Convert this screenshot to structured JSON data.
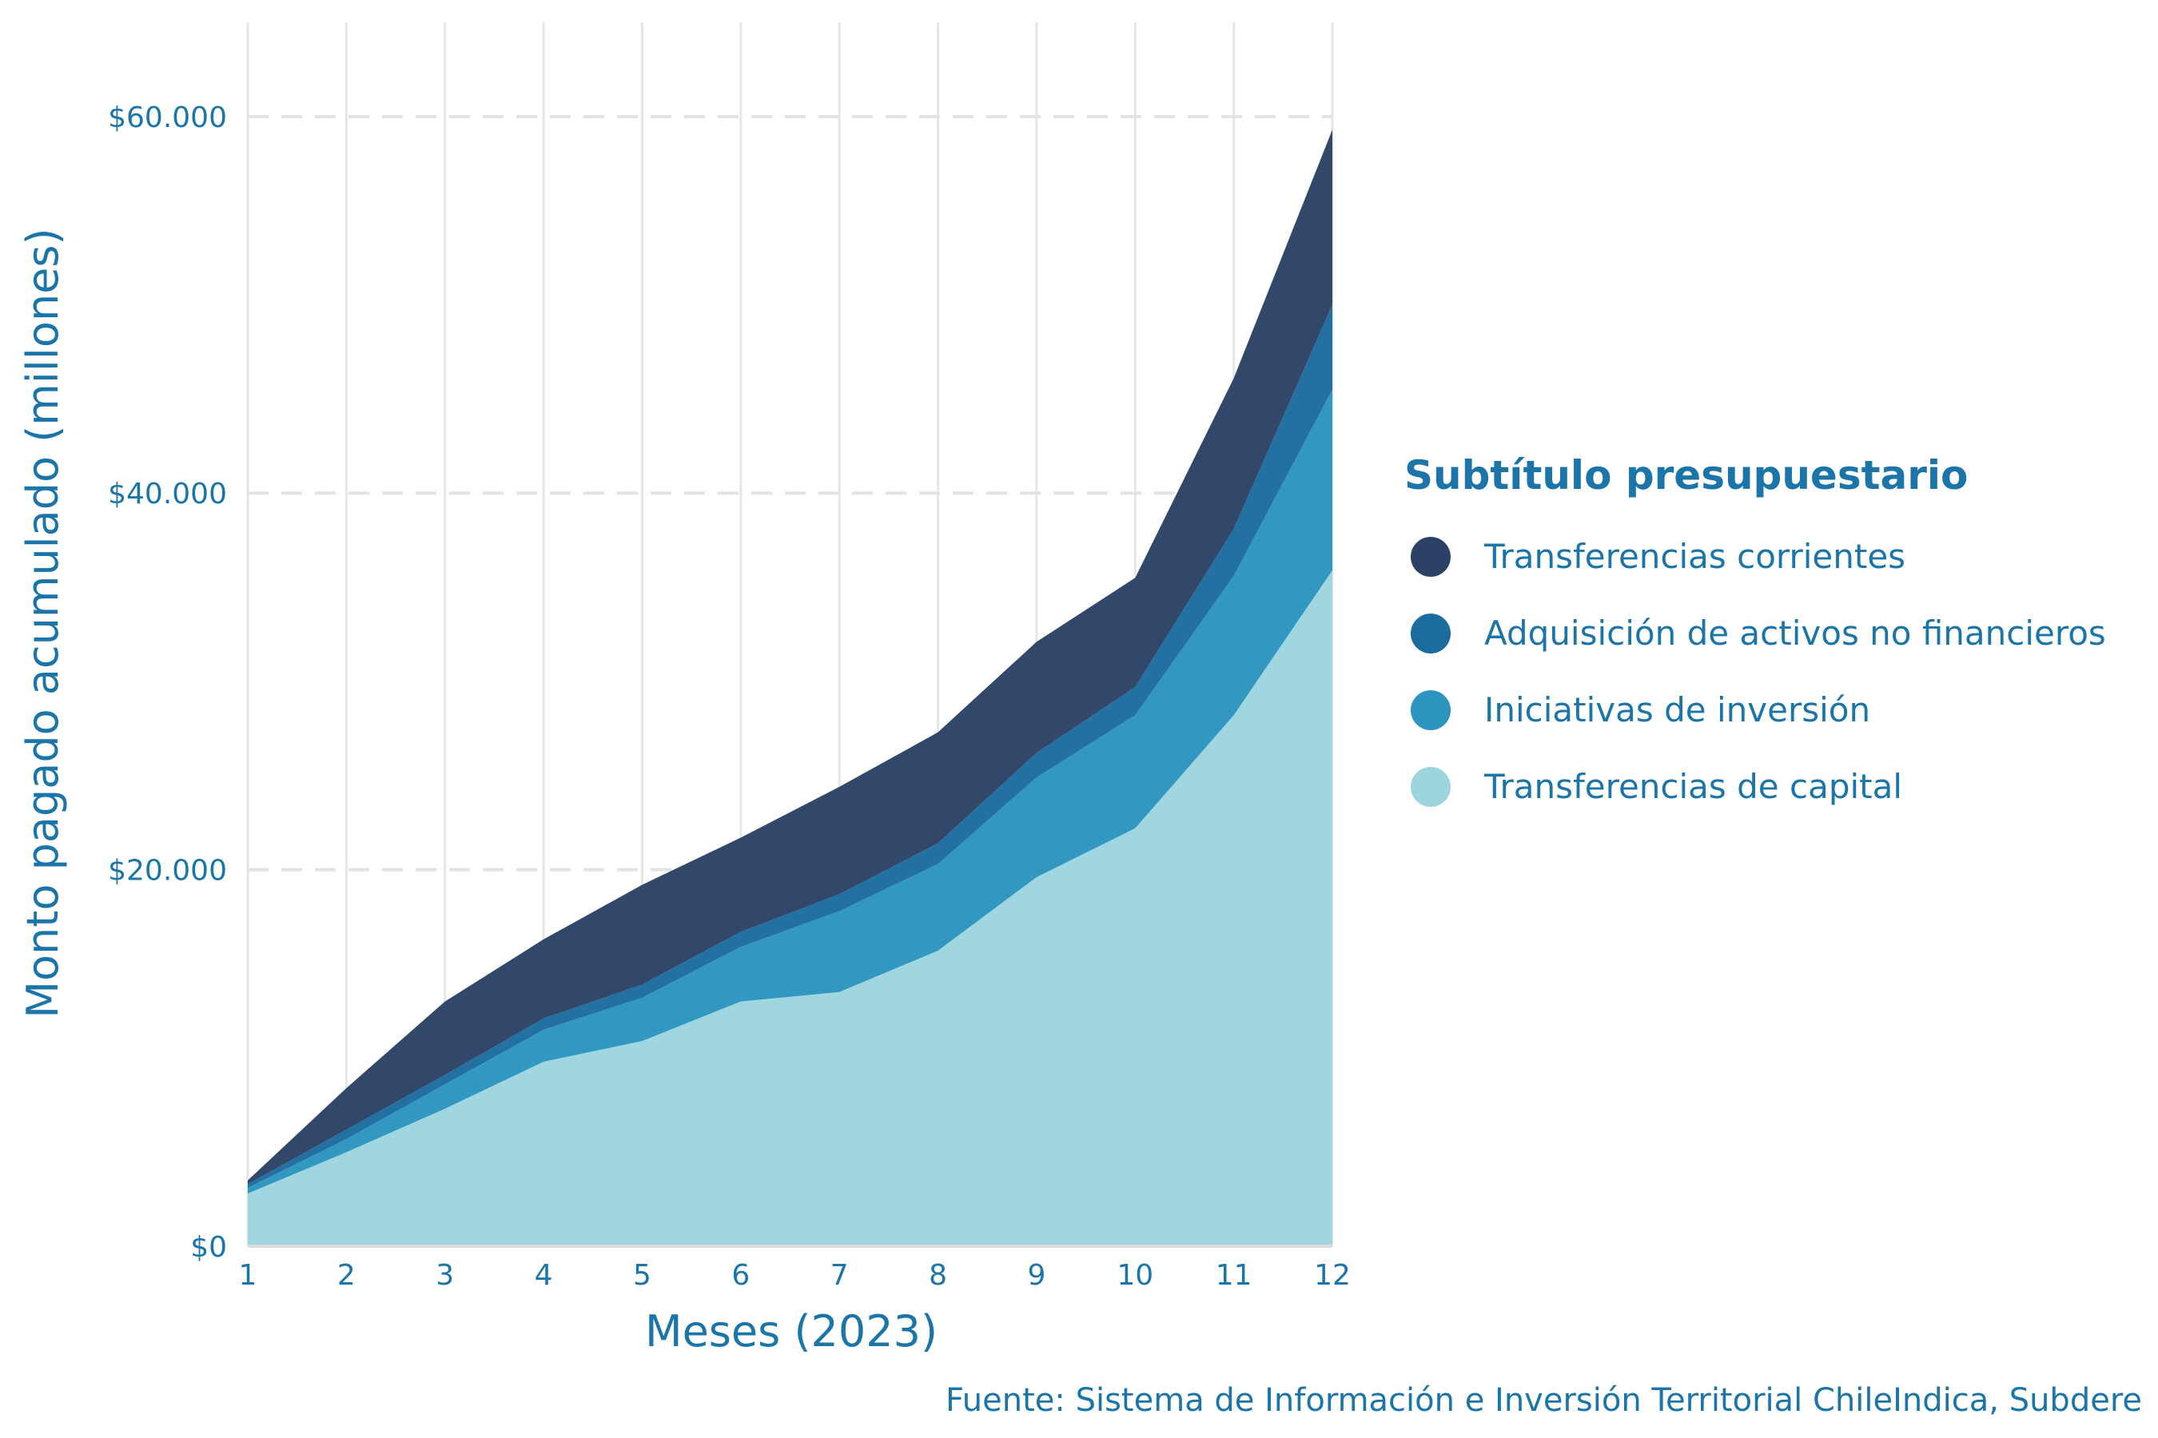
{
  "chart_data": {
    "type": "area",
    "stacked": true,
    "xlabel": "Meses (2023)",
    "ylabel": "Monto pagado acumulado (millones)",
    "x": [
      1,
      2,
      3,
      4,
      5,
      6,
      7,
      8,
      9,
      10,
      11,
      12
    ],
    "x_tick_labels": [
      "1",
      "2",
      "3",
      "4",
      "5",
      "6",
      "7",
      "8",
      "9",
      "10",
      "11",
      "12"
    ],
    "ylim": [
      0,
      65000
    ],
    "y_ticks": [
      0,
      20000,
      40000,
      60000
    ],
    "y_tick_labels": [
      "$0",
      "$20.000",
      "$40.000",
      "$60.000"
    ],
    "grid": true,
    "legend": {
      "title": "Subtítulo presupuestario",
      "placement": "right"
    },
    "series": [
      {
        "name": "Transferencias de capital",
        "color": "#9dd5df",
        "values": [
          2800,
          5000,
          7300,
          9800,
          10900,
          13000,
          13500,
          15700,
          19600,
          22200,
          28200,
          35900
        ]
      },
      {
        "name": "Iniciativas de inversión",
        "color": "#2b95bf",
        "values": [
          300,
          700,
          1300,
          1700,
          2300,
          2900,
          4300,
          4600,
          5300,
          6000,
          7400,
          9600
        ]
      },
      {
        "name": "Adquisición de activos no financieros",
        "color": "#1c6b9f",
        "values": [
          200,
          500,
          500,
          600,
          700,
          800,
          900,
          1100,
          1300,
          1500,
          2500,
          4500
        ]
      },
      {
        "name": "Transferencias corrientes",
        "color": "#2b4266",
        "values": [
          200,
          2200,
          3900,
          4200,
          5300,
          5000,
          5700,
          5900,
          5900,
          5800,
          8000,
          9300
        ]
      }
    ],
    "legend_order": [
      "Transferencias corrientes",
      "Adquisición de activos no financieros",
      "Iniciativas de inversión",
      "Transferencias de capital"
    ],
    "caption": "Fuente: Sistema de Información e Inversión Territorial ChileIndica, Subdere"
  }
}
